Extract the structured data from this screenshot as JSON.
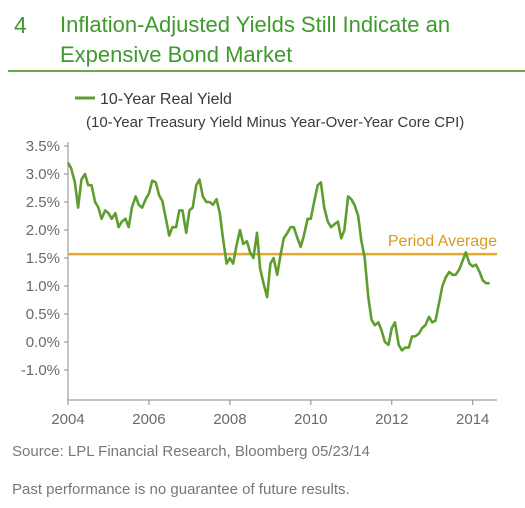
{
  "header": {
    "figure_number": "4",
    "title": "Inflation-Adjusted Yields Still Indicate an Expensive Bond Market"
  },
  "footer": {
    "source": "Source: LPL Financial Research, Bloomberg   05/23/14",
    "disclaimer": "Past performance is no guarantee of future results."
  },
  "colors": {
    "title_green": "#3f9a2d",
    "series_green": "#5f9e2e",
    "average_line": "#e3a92a",
    "axis_text": "#6a6a6a"
  },
  "chart_data": {
    "type": "line",
    "legend": {
      "series_label": "10-Year Real Yield",
      "subtitle": "(10-Year Treasury Yield Minus Year-Over-Year Core CPI)",
      "placement": "top-left"
    },
    "x_ticks": [
      "2004",
      "2006",
      "2008",
      "2010",
      "2012",
      "2014"
    ],
    "y_ticks": [
      "3.5%",
      "3.0%",
      "2.5%",
      "2.0%",
      "1.5%",
      "1.0%",
      "0.5%",
      "0.0%",
      "-1.0%"
    ],
    "xlim": [
      2004,
      2014.6
    ],
    "ylim": [
      -0.5,
      3.5
    ],
    "grid": false,
    "reference_line": {
      "label": "Period Average",
      "value": 1.57
    },
    "series": [
      {
        "name": "10-Year Real Yield",
        "x": [
          2004.0,
          2004.08,
          2004.17,
          2004.25,
          2004.33,
          2004.42,
          2004.5,
          2004.58,
          2004.67,
          2004.75,
          2004.83,
          2004.92,
          2005.0,
          2005.08,
          2005.17,
          2005.25,
          2005.33,
          2005.42,
          2005.5,
          2005.58,
          2005.67,
          2005.75,
          2005.83,
          2005.92,
          2006.0,
          2006.08,
          2006.17,
          2006.25,
          2006.33,
          2006.42,
          2006.5,
          2006.58,
          2006.67,
          2006.75,
          2006.83,
          2006.92,
          2007.0,
          2007.08,
          2007.17,
          2007.25,
          2007.33,
          2007.42,
          2007.5,
          2007.58,
          2007.67,
          2007.75,
          2007.83,
          2007.92,
          2008.0,
          2008.08,
          2008.17,
          2008.25,
          2008.33,
          2008.42,
          2008.5,
          2008.58,
          2008.67,
          2008.75,
          2008.83,
          2008.92,
          2009.0,
          2009.08,
          2009.17,
          2009.25,
          2009.33,
          2009.42,
          2009.5,
          2009.58,
          2009.67,
          2009.75,
          2009.83,
          2009.92,
          2010.0,
          2010.08,
          2010.17,
          2010.25,
          2010.33,
          2010.42,
          2010.5,
          2010.58,
          2010.67,
          2010.75,
          2010.83,
          2010.92,
          2011.0,
          2011.08,
          2011.17,
          2011.25,
          2011.33,
          2011.42,
          2011.5,
          2011.58,
          2011.67,
          2011.75,
          2011.83,
          2011.92,
          2012.0,
          2012.08,
          2012.17,
          2012.25,
          2012.33,
          2012.42,
          2012.5,
          2012.58,
          2012.67,
          2012.75,
          2012.83,
          2012.92,
          2013.0,
          2013.08,
          2013.17,
          2013.25,
          2013.33,
          2013.42,
          2013.5,
          2013.58,
          2013.67,
          2013.75,
          2013.83,
          2013.92,
          2014.0,
          2014.08,
          2014.17,
          2014.25,
          2014.33,
          2014.42
        ],
        "values": [
          3.2,
          3.1,
          2.85,
          2.4,
          2.9,
          3.0,
          2.8,
          2.8,
          2.5,
          2.4,
          2.2,
          2.35,
          2.3,
          2.2,
          2.3,
          2.05,
          2.15,
          2.2,
          2.05,
          2.4,
          2.6,
          2.45,
          2.4,
          2.55,
          2.65,
          2.88,
          2.85,
          2.62,
          2.52,
          2.2,
          1.9,
          2.05,
          2.05,
          2.35,
          2.35,
          1.95,
          2.35,
          2.4,
          2.8,
          2.9,
          2.6,
          2.5,
          2.5,
          2.45,
          2.55,
          2.3,
          1.85,
          1.4,
          1.5,
          1.4,
          1.75,
          2.0,
          1.75,
          1.8,
          1.6,
          1.5,
          1.95,
          1.3,
          1.05,
          0.8,
          1.4,
          1.5,
          1.2,
          1.55,
          1.85,
          1.95,
          2.05,
          2.05,
          1.85,
          1.7,
          1.9,
          2.2,
          2.2,
          2.5,
          2.8,
          2.85,
          2.4,
          2.15,
          2.05,
          2.1,
          2.15,
          1.85,
          2.0,
          2.6,
          2.55,
          2.45,
          2.25,
          1.8,
          1.5,
          0.8,
          0.4,
          0.3,
          0.35,
          0.2,
          0.0,
          -0.05,
          0.25,
          0.35,
          -0.05,
          -0.15,
          -0.1,
          -0.1,
          0.1,
          0.1,
          0.15,
          0.25,
          0.3,
          0.45,
          0.35,
          0.38,
          0.7,
          1.0,
          1.15,
          1.25,
          1.2,
          1.2,
          1.3,
          1.45,
          1.6,
          1.4,
          1.35,
          1.38,
          1.25,
          1.1,
          1.05,
          1.05
        ]
      }
    ]
  }
}
